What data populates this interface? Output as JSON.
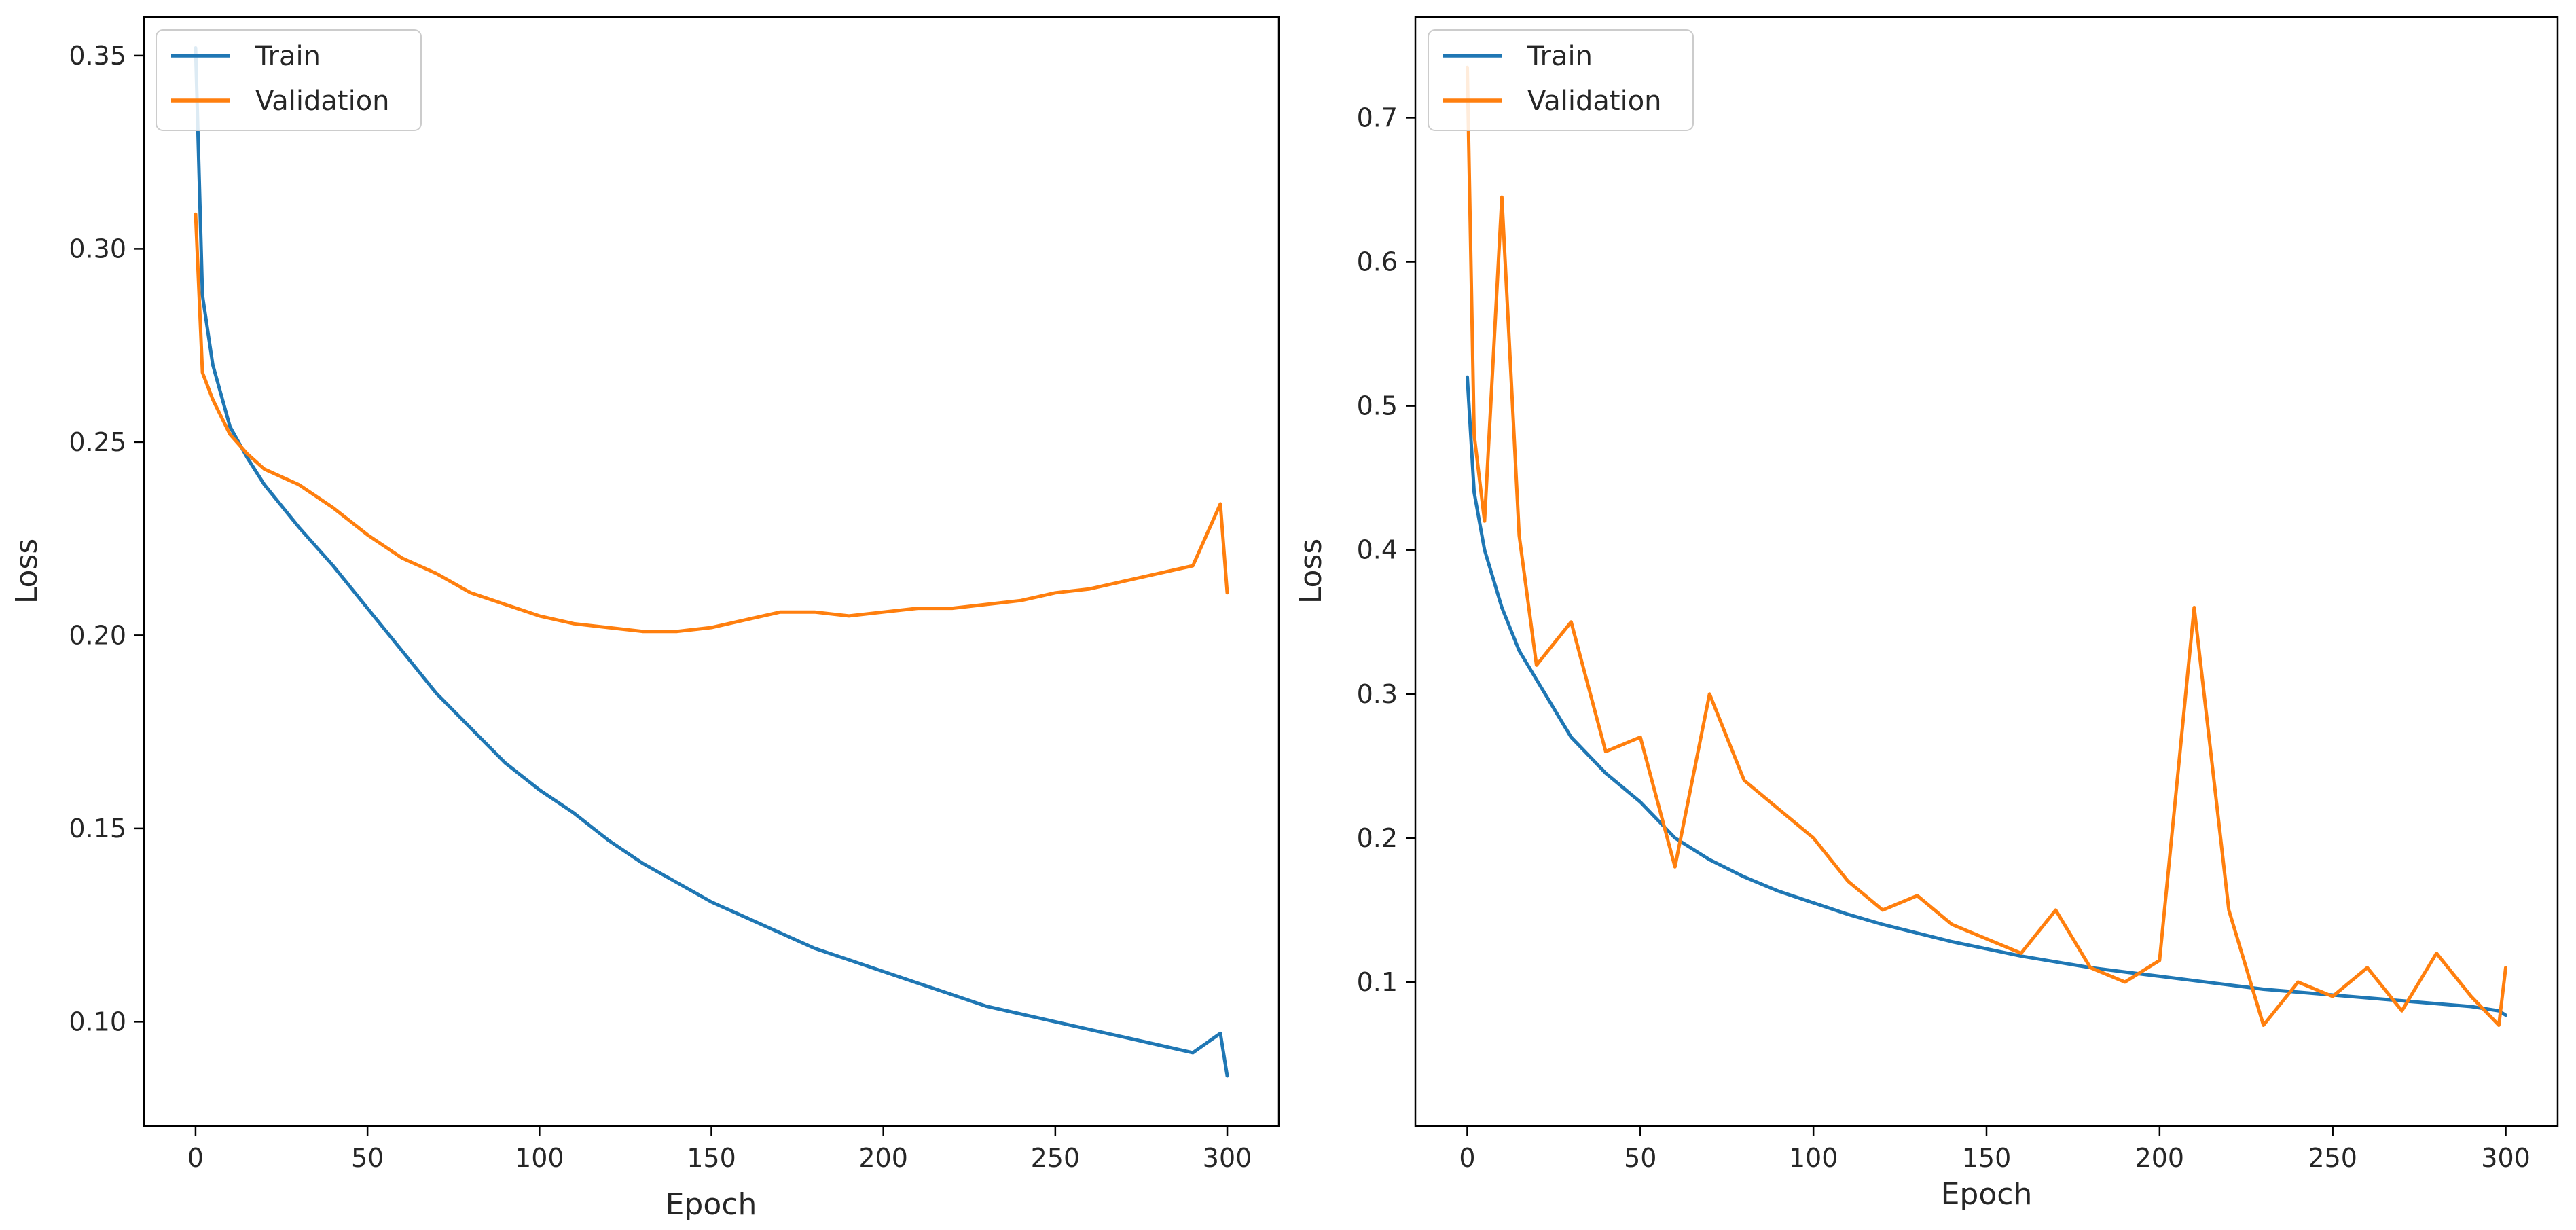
{
  "chart_data": [
    {
      "type": "line",
      "title": "",
      "xlabel": "Epoch",
      "ylabel": "Loss",
      "xlim": [
        -15,
        315
      ],
      "ylim": [
        0.073,
        0.36
      ],
      "x_ticks": [
        0,
        50,
        100,
        150,
        200,
        250,
        300
      ],
      "y_ticks": [
        0.1,
        0.15,
        0.2,
        0.25,
        0.3,
        0.35
      ],
      "y_tick_labels": [
        "0.10",
        "0.15",
        "0.20",
        "0.25",
        "0.30",
        "0.35"
      ],
      "grid": false,
      "legend_position": "top-left",
      "x": [
        0,
        2,
        5,
        10,
        15,
        20,
        30,
        40,
        50,
        60,
        70,
        80,
        90,
        100,
        110,
        120,
        130,
        140,
        150,
        160,
        170,
        180,
        190,
        200,
        210,
        220,
        230,
        240,
        250,
        260,
        270,
        280,
        290,
        298,
        300
      ],
      "series": [
        {
          "name": "Train",
          "color": "#1f77b4",
          "values": [
            0.352,
            0.288,
            0.27,
            0.254,
            0.246,
            0.239,
            0.228,
            0.218,
            0.207,
            0.196,
            0.185,
            0.176,
            0.167,
            0.16,
            0.154,
            0.147,
            0.141,
            0.136,
            0.131,
            0.127,
            0.123,
            0.119,
            0.116,
            0.113,
            0.11,
            0.107,
            0.104,
            0.102,
            0.1,
            0.098,
            0.096,
            0.094,
            0.092,
            0.097,
            0.086
          ]
        },
        {
          "name": "Validation",
          "color": "#ff7f0e",
          "values": [
            0.309,
            0.268,
            0.261,
            0.252,
            0.247,
            0.243,
            0.239,
            0.233,
            0.226,
            0.22,
            0.216,
            0.211,
            0.208,
            0.205,
            0.203,
            0.202,
            0.201,
            0.201,
            0.202,
            0.204,
            0.206,
            0.206,
            0.205,
            0.206,
            0.207,
            0.207,
            0.208,
            0.209,
            0.211,
            0.212,
            0.214,
            0.216,
            0.218,
            0.234,
            0.211
          ]
        }
      ]
    },
    {
      "type": "line",
      "title": "",
      "xlabel": "Epoch",
      "ylabel": "Loss",
      "xlim": [
        -15,
        315
      ],
      "ylim": [
        0.0,
        0.77
      ],
      "x_ticks": [
        0,
        50,
        100,
        150,
        200,
        250,
        300
      ],
      "y_ticks": [
        0.1,
        0.2,
        0.3,
        0.4,
        0.5,
        0.6,
        0.7
      ],
      "y_tick_labels": [
        "0.1",
        "0.2",
        "0.3",
        "0.4",
        "0.5",
        "0.6",
        "0.7"
      ],
      "grid": false,
      "legend_position": "top-left",
      "x": [
        0,
        2,
        5,
        10,
        15,
        20,
        30,
        40,
        50,
        60,
        70,
        80,
        90,
        100,
        110,
        120,
        130,
        140,
        150,
        160,
        170,
        180,
        190,
        200,
        210,
        220,
        230,
        240,
        250,
        260,
        270,
        280,
        290,
        298,
        300
      ],
      "series": [
        {
          "name": "Train",
          "color": "#1f77b4",
          "values": [
            0.52,
            0.44,
            0.4,
            0.36,
            0.33,
            0.31,
            0.27,
            0.245,
            0.225,
            0.2,
            0.185,
            0.173,
            0.163,
            0.155,
            0.147,
            0.14,
            0.134,
            0.128,
            0.123,
            0.118,
            0.114,
            0.11,
            0.107,
            0.104,
            0.101,
            0.098,
            0.095,
            0.093,
            0.091,
            0.089,
            0.087,
            0.085,
            0.083,
            0.08,
            0.077
          ]
        },
        {
          "name": "Validation",
          "color": "#ff7f0e",
          "values": [
            0.735,
            0.48,
            0.42,
            0.645,
            0.41,
            0.32,
            0.35,
            0.26,
            0.27,
            0.18,
            0.3,
            0.24,
            0.22,
            0.2,
            0.17,
            0.15,
            0.16,
            0.14,
            0.13,
            0.12,
            0.15,
            0.11,
            0.1,
            0.115,
            0.36,
            0.15,
            0.07,
            0.1,
            0.09,
            0.11,
            0.08,
            0.12,
            0.09,
            0.07,
            0.11
          ]
        }
      ]
    }
  ]
}
